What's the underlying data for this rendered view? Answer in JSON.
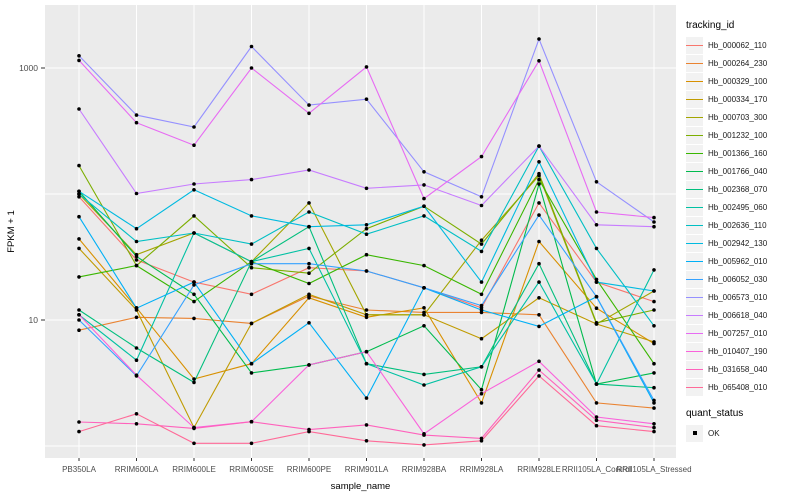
{
  "chart_data": {
    "type": "line",
    "xlabel": "sample_name",
    "ylabel": "FPKM + 1",
    "y_scale": "log10",
    "ylim_log": [
      -0.1,
      3.5
    ],
    "grid": "on",
    "gridline_values": [
      1,
      10,
      100,
      1000
    ],
    "y_ticks": [
      {
        "label": "1000",
        "value": 1000
      },
      {
        "label": "10",
        "value": 10
      }
    ],
    "categories": [
      "PB350LA",
      "RRIM600LA",
      "RRIM600LE",
      "RRIM600SE",
      "RRIM600PE",
      "RRIM901LA",
      "RRIM928BA",
      "RRIM928LA",
      "RRIM928LE",
      "RRII105LA_Control",
      "RRII105LA_Stressed"
    ],
    "legend_title": "tracking_id",
    "legend_position": "right",
    "point_legend": {
      "title": "quant_status",
      "items": [
        {
          "label": "OK"
        }
      ]
    },
    "point_color": "#000000",
    "panel_color": "#EBEBEB",
    "gridline_color": "#FFFFFF",
    "tick_text_color": "#4D4D4D",
    "series": [
      {
        "name": "Hb_000062_110",
        "color": "#F8766D",
        "values": [
          95,
          30,
          20,
          16,
          26,
          24.5,
          18,
          12.5,
          85,
          20,
          14
        ]
      },
      {
        "name": "Hb_000264_230",
        "color": "#EA8331",
        "values": [
          8.3,
          10.5,
          10.3,
          9.4,
          15.5,
          12,
          11.5,
          11.5,
          11,
          2.2,
          2.0
        ]
      },
      {
        "name": "Hb_000329_100",
        "color": "#D89000",
        "values": [
          44,
          12.5,
          3.4,
          4.5,
          15,
          10.5,
          12.5,
          2.2,
          42,
          12.4,
          6.5
        ]
      },
      {
        "name": "Hb_000334_170",
        "color": "#C09B00",
        "values": [
          37,
          12,
          1.4,
          9.4,
          16,
          11,
          11,
          7.1,
          15,
          9.3,
          6.7
        ]
      },
      {
        "name": "Hb_000703_300",
        "color": "#A3A500",
        "values": [
          100,
          33,
          49,
          29,
          85,
          11,
          11,
          43,
          140,
          9.3,
          17
        ]
      },
      {
        "name": "Hb_001232_100",
        "color": "#7CAE00",
        "values": [
          168,
          27,
          67,
          26,
          23.5,
          53,
          80,
          40,
          145,
          9.5,
          12
        ]
      },
      {
        "name": "Hb_001366_160",
        "color": "#39B600",
        "values": [
          22,
          27,
          14,
          29,
          19.5,
          33,
          27,
          16,
          130,
          21,
          4.5
        ]
      },
      {
        "name": "Hb_001766_040",
        "color": "#00BB4E",
        "values": [
          105,
          32,
          16,
          3.8,
          4.4,
          5.6,
          9,
          2.8,
          120,
          3.1,
          3.8
        ]
      },
      {
        "name": "Hb_002368_070",
        "color": "#00BF7D",
        "values": [
          12,
          6,
          3.2,
          29,
          55,
          4.5,
          3.7,
          4.25,
          28,
          3.1,
          2.9
        ]
      },
      {
        "name": "Hb_002495_060",
        "color": "#00C1A3",
        "values": [
          11,
          4.8,
          49,
          29,
          37,
          4.5,
          3.05,
          4.25,
          20,
          3.1,
          25
        ]
      },
      {
        "name": "Hb_002636_110",
        "color": "#00BFC4",
        "values": [
          100,
          42,
          49,
          40,
          72,
          48,
          67,
          35,
          240,
          37,
          9
        ]
      },
      {
        "name": "Hb_002942_130",
        "color": "#00BAE0",
        "values": [
          105,
          53,
          108,
          67,
          55,
          57,
          80,
          20,
          180,
          20,
          17
        ]
      },
      {
        "name": "Hb_005962_010",
        "color": "#00B0F6",
        "values": [
          66,
          12.4,
          20,
          4.5,
          9.5,
          2.4,
          18,
          12,
          8.9,
          15.3,
          2.2
        ]
      },
      {
        "name": "Hb_006052_030",
        "color": "#35A2FF",
        "values": [
          10,
          3.6,
          19,
          28,
          28,
          24.5,
          18,
          13,
          68,
          15.3,
          2.3
        ]
      },
      {
        "name": "Hb_006573_010",
        "color": "#9590FF",
        "values": [
          1250,
          423,
          340,
          1480,
          508,
          565,
          150,
          95,
          1700,
          125,
          60
        ]
      },
      {
        "name": "Hb_006618_040",
        "color": "#C77CFF",
        "values": [
          473,
          101,
          120,
          130,
          155,
          111,
          118,
          81,
          240,
          57,
          55
        ]
      },
      {
        "name": "Hb_007257_010",
        "color": "#E76BF3",
        "values": [
          1150,
          368,
          244,
          1000,
          437,
          1020,
          92,
          198,
          1140,
          72,
          65
        ]
      },
      {
        "name": "Hb_010407_190",
        "color": "#FA62DB",
        "values": [
          11,
          3.65,
          1.4,
          1.56,
          4.4,
          5.6,
          1.25,
          2.6,
          4.7,
          1.7,
          1.5
        ]
      },
      {
        "name": "Hb_031658_040",
        "color": "#FF62BC",
        "values": [
          1.55,
          1.5,
          1.38,
          1.56,
          1.35,
          1.47,
          1.22,
          1.15,
          4.0,
          1.6,
          1.4
        ]
      },
      {
        "name": "Hb_065408_010",
        "color": "#FF6A98",
        "values": [
          1.3,
          1.8,
          1.05,
          1.05,
          1.3,
          1.1,
          1.02,
          1.1,
          3.6,
          1.45,
          1.3
        ]
      }
    ]
  }
}
